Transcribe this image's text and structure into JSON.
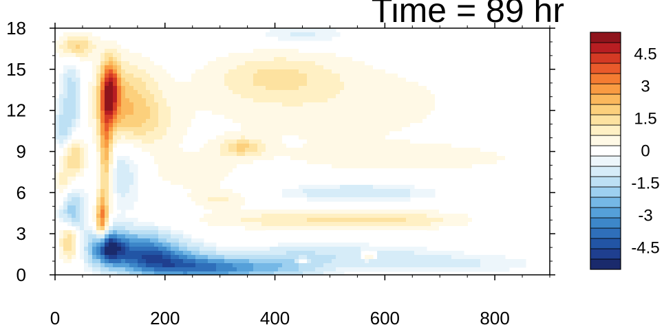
{
  "title": "Time = 89 hr",
  "chart_data": {
    "type": "heatmap",
    "title": "Time = 89 hr",
    "xlabel": "",
    "ylabel": "",
    "xlim": [
      0,
      900
    ],
    "ylim": [
      0,
      18
    ],
    "x_ticks": [
      {
        "value": 0,
        "label": "0"
      },
      {
        "value": 200,
        "label": "200"
      },
      {
        "value": 400,
        "label": "400"
      },
      {
        "value": 600,
        "label": "600"
      },
      {
        "value": 800,
        "label": "800"
      }
    ],
    "y_ticks": [
      {
        "value": 0,
        "label": "0"
      },
      {
        "value": 3,
        "label": "3"
      },
      {
        "value": 6,
        "label": "6"
      },
      {
        "value": 9,
        "label": "9"
      },
      {
        "value": 12,
        "label": "12"
      },
      {
        "value": 15,
        "label": "15"
      },
      {
        "value": 18,
        "label": "18"
      }
    ],
    "colorbar": {
      "range": [
        -5.5,
        5.5
      ],
      "levels": [
        -5.5,
        -5,
        -4.5,
        -4,
        -3.5,
        -3,
        -2.5,
        -2,
        -1.5,
        -1,
        -0.5,
        0,
        0.5,
        1,
        1.5,
        2,
        2.5,
        3,
        3.5,
        4,
        4.5,
        5,
        5.5
      ],
      "colors": [
        "#1a2a6c",
        "#1f3f8f",
        "#2255a5",
        "#2f6fba",
        "#3d87c9",
        "#55a0d9",
        "#75b8e6",
        "#9dd0f0",
        "#bde0f4",
        "#d6ecf8",
        "#edf6fb",
        "#ffffff",
        "#fff9e6",
        "#fff0c4",
        "#fde2a0",
        "#fcd07c",
        "#fbb85c",
        "#f99b42",
        "#f47c32",
        "#e95a2b",
        "#d43a24",
        "#b81e22",
        "#8f141c"
      ],
      "tick_labels": [
        {
          "value": 4.5,
          "label": "4.5"
        },
        {
          "value": 3,
          "label": "3"
        },
        {
          "value": 1.5,
          "label": "1.5"
        },
        {
          "value": 0,
          "label": "0"
        },
        {
          "value": -1.5,
          "label": "-1.5"
        },
        {
          "value": -3,
          "label": "-3"
        },
        {
          "value": -4.5,
          "label": "-4.5"
        }
      ]
    },
    "features": [
      {
        "x": 100,
        "y": 13.5,
        "value": 4.5,
        "sx": 12,
        "sy": 1.5
      },
      {
        "x": 92,
        "y": 9,
        "value": 3,
        "sx": 9,
        "sy": 2.5
      },
      {
        "x": 85,
        "y": 4,
        "value": 3.5,
        "sx": 8,
        "sy": 1.4
      },
      {
        "x": 130,
        "y": 13,
        "value": 1.8,
        "sx": 40,
        "sy": 2
      },
      {
        "x": 150,
        "y": 11,
        "value": 1.2,
        "sx": 50,
        "sy": 1.5
      },
      {
        "x": 120,
        "y": 8,
        "value": -1,
        "sx": 30,
        "sy": 2
      },
      {
        "x": 95,
        "y": 2,
        "value": -4.5,
        "sx": 20,
        "sy": 0.8
      },
      {
        "x": 150,
        "y": 1.8,
        "value": -3,
        "sx": 45,
        "sy": 1
      },
      {
        "x": 200,
        "y": 1,
        "value": -2.5,
        "sx": 50,
        "sy": 0.8
      },
      {
        "x": 260,
        "y": 0.5,
        "value": -2,
        "sx": 60,
        "sy": 0.6
      },
      {
        "x": 330,
        "y": 0.5,
        "value": -1.8,
        "sx": 60,
        "sy": 0.5
      },
      {
        "x": 430,
        "y": 0.6,
        "value": -1.2,
        "sx": 50,
        "sy": 0.6
      },
      {
        "x": 25,
        "y": 2.5,
        "value": 2.5,
        "sx": 12,
        "sy": 1
      },
      {
        "x": 30,
        "y": 4.5,
        "value": -2,
        "sx": 15,
        "sy": 1.2
      },
      {
        "x": 35,
        "y": 8.5,
        "value": 2,
        "sx": 15,
        "sy": 1
      },
      {
        "x": 30,
        "y": 12,
        "value": -1.2,
        "sx": 15,
        "sy": 1.2
      },
      {
        "x": 30,
        "y": 14,
        "value": -1,
        "sx": 12,
        "sy": 1
      },
      {
        "x": 40,
        "y": 16.7,
        "value": 2,
        "sx": 25,
        "sy": 0.6
      },
      {
        "x": 15,
        "y": 6.5,
        "value": 1.2,
        "sx": 10,
        "sy": 1
      },
      {
        "x": 15,
        "y": 10.5,
        "value": -1.2,
        "sx": 10,
        "sy": 1
      },
      {
        "x": 340,
        "y": 9.3,
        "value": 1.8,
        "sx": 30,
        "sy": 0.5
      },
      {
        "x": 400,
        "y": 14.5,
        "value": 1.2,
        "sx": 80,
        "sy": 1.2
      },
      {
        "x": 500,
        "y": 12.5,
        "value": 0.8,
        "sx": 200,
        "sy": 2.5
      },
      {
        "x": 650,
        "y": 8.5,
        "value": 0.8,
        "sx": 150,
        "sy": 0.7
      },
      {
        "x": 420,
        "y": 4,
        "value": 1.2,
        "sx": 120,
        "sy": 0.5
      },
      {
        "x": 620,
        "y": 4,
        "value": 1.3,
        "sx": 100,
        "sy": 0.5
      },
      {
        "x": 550,
        "y": 6,
        "value": -1,
        "sx": 90,
        "sy": 0.4
      },
      {
        "x": 300,
        "y": 5.5,
        "value": 1,
        "sx": 40,
        "sy": 0.5
      },
      {
        "x": 500,
        "y": 1.5,
        "value": -0.8,
        "sx": 120,
        "sy": 0.5
      },
      {
        "x": 700,
        "y": 0.8,
        "value": -0.6,
        "sx": 120,
        "sy": 0.5
      },
      {
        "x": 450,
        "y": 1,
        "value": 1.8,
        "sx": 8,
        "sy": 0.2
      },
      {
        "x": 570,
        "y": 1.4,
        "value": 1.8,
        "sx": 10,
        "sy": 0.2
      },
      {
        "x": 450,
        "y": 17.5,
        "value": -0.7,
        "sx": 60,
        "sy": 0.5
      },
      {
        "x": 250,
        "y": 7.5,
        "value": 0.8,
        "sx": 60,
        "sy": 1
      }
    ]
  }
}
